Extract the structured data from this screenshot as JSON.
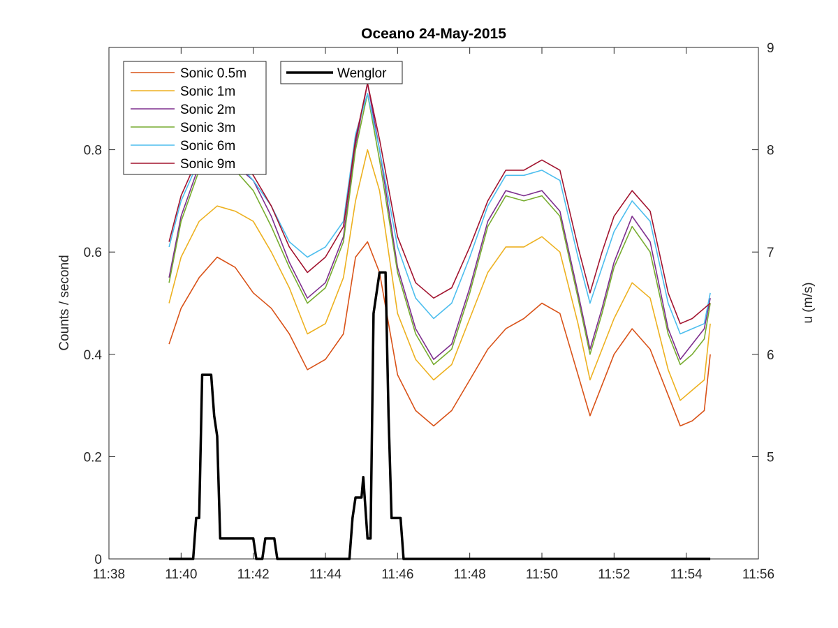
{
  "chart_data": {
    "type": "line",
    "title": "Oceano 24-May-2015",
    "xlabel": "",
    "ylabel": "Counts / second",
    "y2label": "u (m/s)",
    "xlim": [
      "11:38",
      "11:56"
    ],
    "ylim": [
      0,
      1
    ],
    "y2lim": [
      4,
      9
    ],
    "xticks": [
      "11:38",
      "11:40",
      "11:42",
      "11:44",
      "11:46",
      "11:48",
      "11:50",
      "11:52",
      "11:54",
      "11:56"
    ],
    "yticks": [
      "0",
      "0.2",
      "0.4",
      "0.6",
      "0.8"
    ],
    "y2ticks": [
      "5",
      "6",
      "7",
      "8",
      "9"
    ],
    "grid": false,
    "legend_left": {
      "placement": "top-left",
      "entries": [
        "Sonic 0.5m",
        "Sonic 1m",
        "Sonic 2m",
        "Sonic 3m",
        "Sonic 6m",
        "Sonic 9m"
      ]
    },
    "legend_right": {
      "placement": "top-left",
      "entries": [
        "Wenglor"
      ]
    },
    "time": [
      "11:39:40",
      "11:40:00",
      "11:40:30",
      "11:41:00",
      "11:41:30",
      "11:42:00",
      "11:42:30",
      "11:43:00",
      "11:43:30",
      "11:44:00",
      "11:44:30",
      "11:44:50",
      "11:45:10",
      "11:45:30",
      "11:46:00",
      "11:46:30",
      "11:47:00",
      "11:47:30",
      "11:48:00",
      "11:48:30",
      "11:49:00",
      "11:49:30",
      "11:50:00",
      "11:50:30",
      "11:51:00",
      "11:51:20",
      "11:51:40",
      "11:52:00",
      "11:52:30",
      "11:53:00",
      "11:53:30",
      "11:53:50",
      "11:54:10",
      "11:54:30",
      "11:54:40"
    ],
    "series": [
      {
        "name": "Sonic 0.5m",
        "axis": "right",
        "color": "#D95319",
        "values": [
          6.1,
          6.45,
          6.75,
          6.95,
          6.85,
          6.6,
          6.45,
          6.2,
          5.85,
          5.95,
          6.2,
          6.95,
          7.1,
          6.8,
          5.8,
          5.45,
          5.3,
          5.45,
          5.75,
          6.05,
          6.25,
          6.35,
          6.5,
          6.4,
          5.8,
          5.4,
          5.7,
          6.0,
          6.25,
          6.05,
          5.6,
          5.3,
          5.35,
          5.45,
          6.0
        ]
      },
      {
        "name": "Sonic 1m",
        "axis": "right",
        "color": "#EDB120",
        "values": [
          6.5,
          6.95,
          7.3,
          7.45,
          7.4,
          7.3,
          7.0,
          6.65,
          6.2,
          6.3,
          6.75,
          7.5,
          8.0,
          7.6,
          6.4,
          5.95,
          5.75,
          5.9,
          6.35,
          6.8,
          7.05,
          7.05,
          7.15,
          7.0,
          6.3,
          5.75,
          6.05,
          6.35,
          6.7,
          6.55,
          5.85,
          5.55,
          5.65,
          5.75,
          6.3
        ]
      },
      {
        "name": "Sonic 2m",
        "axis": "right",
        "color": "#7E2F8E",
        "values": [
          6.75,
          7.35,
          7.85,
          8.0,
          7.85,
          7.7,
          7.35,
          6.9,
          6.55,
          6.7,
          7.15,
          8.05,
          8.65,
          8.0,
          6.85,
          6.25,
          5.95,
          6.1,
          6.65,
          7.3,
          7.6,
          7.55,
          7.6,
          7.4,
          6.6,
          6.05,
          6.45,
          6.9,
          7.35,
          7.1,
          6.25,
          5.95,
          6.1,
          6.25,
          6.55
        ]
      },
      {
        "name": "Sonic 3m",
        "axis": "right",
        "color": "#77AC30",
        "values": [
          6.7,
          7.3,
          7.8,
          7.95,
          7.8,
          7.6,
          7.25,
          6.85,
          6.5,
          6.65,
          7.1,
          8.0,
          8.55,
          7.9,
          6.8,
          6.2,
          5.9,
          6.05,
          6.6,
          7.25,
          7.55,
          7.5,
          7.55,
          7.35,
          6.55,
          6.0,
          6.4,
          6.85,
          7.25,
          7.0,
          6.2,
          5.9,
          6.0,
          6.15,
          6.5
        ]
      },
      {
        "name": "Sonic 6m",
        "axis": "right",
        "color": "#4DBEEE",
        "values": [
          7.05,
          7.5,
          7.9,
          8.05,
          7.9,
          7.7,
          7.45,
          7.1,
          6.95,
          7.05,
          7.3,
          8.15,
          8.55,
          8.0,
          7.05,
          6.55,
          6.35,
          6.5,
          6.95,
          7.45,
          7.75,
          7.75,
          7.8,
          7.7,
          6.95,
          6.5,
          6.85,
          7.2,
          7.5,
          7.3,
          6.5,
          6.2,
          6.25,
          6.3,
          6.6
        ]
      },
      {
        "name": "Sonic 9m",
        "axis": "right",
        "color": "#A2142F",
        "values": [
          7.1,
          7.55,
          7.95,
          8.1,
          7.95,
          7.75,
          7.45,
          7.05,
          6.8,
          6.95,
          7.25,
          8.1,
          8.65,
          8.1,
          7.15,
          6.7,
          6.55,
          6.65,
          7.05,
          7.5,
          7.8,
          7.8,
          7.9,
          7.8,
          7.05,
          6.6,
          7.0,
          7.35,
          7.6,
          7.4,
          6.6,
          6.3,
          6.35,
          6.45,
          6.5
        ]
      },
      {
        "name": "Wenglor",
        "axis": "left",
        "color": "#000000",
        "time": [
          "11:39:40",
          "11:40:20",
          "11:40:25",
          "11:40:30",
          "11:40:35",
          "11:40:50",
          "11:40:55",
          "11:41:00",
          "11:41:05",
          "11:41:15",
          "11:41:20",
          "11:42:00",
          "11:42:05",
          "11:42:15",
          "11:42:20",
          "11:42:25",
          "11:42:30",
          "11:42:35",
          "11:42:40",
          "11:44:40",
          "11:44:45",
          "11:44:50",
          "11:44:55",
          "11:44:57",
          "11:45:00",
          "11:45:03",
          "11:45:10",
          "11:45:15",
          "11:45:20",
          "11:45:30",
          "11:45:40",
          "11:45:45",
          "11:45:50",
          "11:46:00",
          "11:46:05",
          "11:46:10",
          "11:54:40"
        ],
        "values": [
          0,
          0,
          0.08,
          0.08,
          0.36,
          0.36,
          0.28,
          0.24,
          0.04,
          0.04,
          0.04,
          0.04,
          0,
          0,
          0.04,
          0.04,
          0.04,
          0.04,
          0,
          0,
          0.08,
          0.12,
          0.12,
          0.12,
          0.12,
          0.16,
          0.04,
          0.04,
          0.48,
          0.56,
          0.56,
          0.28,
          0.08,
          0.08,
          0.08,
          0,
          0
        ]
      }
    ]
  }
}
